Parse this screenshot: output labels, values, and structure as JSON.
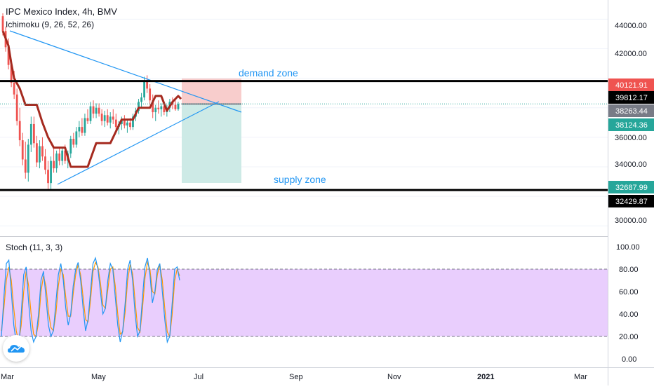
{
  "header": {
    "title": "IPC Mexico Index, 4h, BMV",
    "indicator": "Ichimoku (9, 26, 52, 26)"
  },
  "stoch": {
    "title": "Stoch (11, 3, 3)",
    "ticks": [
      "100.00",
      "80.00",
      "60.00",
      "40.00",
      "20.00",
      "0.00"
    ]
  },
  "annotations": {
    "demand": "demand zone",
    "supply": "supply zone"
  },
  "price_axis": {
    "ticks": [
      "44000.00",
      "42000.00",
      "36000.00",
      "34000.00",
      "30000.00"
    ]
  },
  "price_labels": [
    {
      "text": "40121.91",
      "bg": "#ef5350",
      "fg": "#ffffff"
    },
    {
      "text": "39812.17",
      "bg": "#000000",
      "fg": "#ffffff"
    },
    {
      "text": "38263.44",
      "bg": "#787b86",
      "fg": "#ffffff"
    },
    {
      "text": "38124.36",
      "bg": "#26a69a",
      "fg": "#ffffff"
    },
    {
      "text": "32687.99",
      "bg": "#26a69a",
      "fg": "#ffffff"
    },
    {
      "text": "32429.87",
      "bg": "#000000",
      "fg": "#ffffff"
    }
  ],
  "time_axis": {
    "ticks": [
      "Mar",
      "May",
      "Jul",
      "Sep",
      "Nov",
      "2021",
      "Mar"
    ]
  },
  "colors": {
    "up": "#26a69a",
    "down": "#ef5350",
    "ichimoku": "#a52a1f",
    "trendline": "#2196f3",
    "stoch_k": "#2196f3",
    "stoch_d": "#ff9800",
    "stoch_band": "#e1bdfc"
  },
  "chart_data": {
    "type": "candlestick",
    "y_range": [
      29300,
      45300
    ],
    "levels": [
      39812.17,
      32429.87
    ],
    "last_price": 38263.44,
    "position": {
      "entry": 38263.44,
      "stop": 40121.91,
      "target": 32687.99
    },
    "ichimoku_baseline": [
      [
        0,
        43200
      ],
      [
        2,
        42200
      ],
      [
        3,
        41000
      ],
      [
        4,
        40000
      ],
      [
        6,
        39300
      ],
      [
        8,
        38200
      ],
      [
        12,
        38200
      ],
      [
        14,
        37000
      ],
      [
        16,
        36000
      ],
      [
        18,
        35300
      ],
      [
        22,
        35300
      ],
      [
        24,
        34000
      ],
      [
        30,
        34000
      ],
      [
        33,
        35600
      ],
      [
        38,
        35600
      ],
      [
        42,
        37200
      ],
      [
        46,
        37200
      ],
      [
        48,
        38000
      ],
      [
        52,
        38000
      ],
      [
        54,
        38800
      ],
      [
        56,
        38800
      ],
      [
        58,
        37800
      ],
      [
        60,
        38400
      ],
      [
        62,
        38800
      ],
      [
        63,
        38600
      ]
    ],
    "candles": [
      [
        44200,
        44400,
        42900,
        43200
      ],
      [
        43200,
        43500,
        41800,
        42100
      ],
      [
        42100,
        42700,
        40600,
        40900
      ],
      [
        40900,
        41300,
        39400,
        39700
      ],
      [
        39700,
        40500,
        38600,
        38900
      ],
      [
        38900,
        39300,
        36800,
        37100
      ],
      [
        37100,
        38000,
        35400,
        35800
      ],
      [
        35800,
        36300,
        34100,
        34500
      ],
      [
        34500,
        35700,
        33200,
        33600
      ],
      [
        33600,
        35900,
        33000,
        35500
      ],
      [
        35500,
        37400,
        35000,
        36900
      ],
      [
        36900,
        37400,
        35300,
        35600
      ],
      [
        35600,
        36100,
        34000,
        34300
      ],
      [
        34300,
        35800,
        33900,
        35400
      ],
      [
        35400,
        36000,
        34400,
        34700
      ],
      [
        34700,
        35200,
        33500,
        33800
      ],
      [
        33800,
        34400,
        32500,
        32900
      ],
      [
        32900,
        34700,
        32500,
        34400
      ],
      [
        34400,
        35400,
        33600,
        33900
      ],
      [
        33900,
        35100,
        33600,
        34900
      ],
      [
        34900,
        35300,
        34100,
        34400
      ],
      [
        34400,
        35300,
        34100,
        35100
      ],
      [
        35100,
        35500,
        34200,
        34400
      ],
      [
        34400,
        35100,
        33900,
        34900
      ],
      [
        34900,
        36100,
        34600,
        35900
      ],
      [
        35900,
        36300,
        35300,
        35500
      ],
      [
        35500,
        36700,
        35300,
        36400
      ],
      [
        36400,
        37100,
        36000,
        36700
      ],
      [
        36700,
        37300,
        36100,
        36300
      ],
      [
        36300,
        37600,
        36100,
        37300
      ],
      [
        37300,
        37900,
        36900,
        37100
      ],
      [
        37100,
        38400,
        36900,
        38100
      ],
      [
        38100,
        38500,
        37300,
        37600
      ],
      [
        37600,
        38300,
        37300,
        38000
      ],
      [
        38000,
        38300,
        37400,
        37600
      ],
      [
        37600,
        37900,
        36800,
        37100
      ],
      [
        37100,
        37800,
        36700,
        37500
      ],
      [
        37500,
        37900,
        36800,
        37000
      ],
      [
        37000,
        37700,
        36600,
        37400
      ],
      [
        37400,
        37900,
        36900,
        37200
      ],
      [
        37200,
        37600,
        36400,
        36700
      ],
      [
        36700,
        37100,
        36200,
        36900
      ],
      [
        36900,
        37400,
        36500,
        37200
      ],
      [
        37200,
        37500,
        36600,
        36800
      ],
      [
        36800,
        37200,
        36300,
        37000
      ],
      [
        37000,
        37300,
        36500,
        36700
      ],
      [
        36700,
        37600,
        36500,
        37400
      ],
      [
        37400,
        38000,
        37100,
        37800
      ],
      [
        37800,
        38600,
        37600,
        38400
      ],
      [
        38400,
        39000,
        38000,
        38700
      ],
      [
        38700,
        40100,
        38500,
        39800
      ],
      [
        39800,
        40200,
        39000,
        39300
      ],
      [
        39300,
        39600,
        38200,
        38500
      ],
      [
        38500,
        38900,
        37300,
        37700
      ],
      [
        37700,
        38200,
        37100,
        38000
      ],
      [
        38000,
        38500,
        37600,
        37900
      ],
      [
        37900,
        38300,
        37400,
        38100
      ],
      [
        38100,
        38400,
        37500,
        37700
      ],
      [
        37700,
        38200,
        37400,
        38000
      ],
      [
        38000,
        38600,
        37700,
        38400
      ],
      [
        38400,
        38700,
        37900,
        38200
      ],
      [
        38200,
        38500,
        37800,
        37900
      ],
      [
        37900,
        38400,
        37800,
        38263
      ]
    ],
    "stochastic": {
      "y_range": [
        0,
        100
      ],
      "bands": [
        20,
        80
      ],
      "k": [
        20,
        55,
        85,
        88,
        60,
        30,
        15,
        10,
        40,
        75,
        82,
        50,
        25,
        15,
        20,
        40,
        70,
        78,
        55,
        30,
        20,
        25,
        50,
        75,
        85,
        70,
        45,
        30,
        40,
        65,
        80,
        86,
        70,
        45,
        25,
        35,
        60,
        85,
        90,
        80,
        60,
        40,
        45,
        70,
        85,
        80,
        55,
        30,
        15,
        25,
        50,
        80,
        88,
        70,
        40,
        20,
        25,
        55,
        82,
        90,
        75,
        50,
        60,
        80,
        85,
        60,
        35,
        15,
        20,
        50,
        80,
        82,
        70
      ],
      "d": [
        25,
        45,
        70,
        82,
        70,
        45,
        25,
        15,
        30,
        60,
        78,
        65,
        40,
        22,
        20,
        32,
        60,
        74,
        65,
        42,
        28,
        25,
        40,
        65,
        80,
        75,
        55,
        38,
        38,
        58,
        75,
        84,
        75,
        55,
        35,
        33,
        52,
        78,
        86,
        82,
        68,
        48,
        45,
        62,
        80,
        82,
        65,
        40,
        22,
        24,
        42,
        70,
        84,
        76,
        52,
        28,
        24,
        45,
        72,
        86,
        80,
        60,
        58,
        75,
        84,
        70,
        45,
        24,
        20,
        40,
        70,
        80,
        74
      ]
    }
  }
}
